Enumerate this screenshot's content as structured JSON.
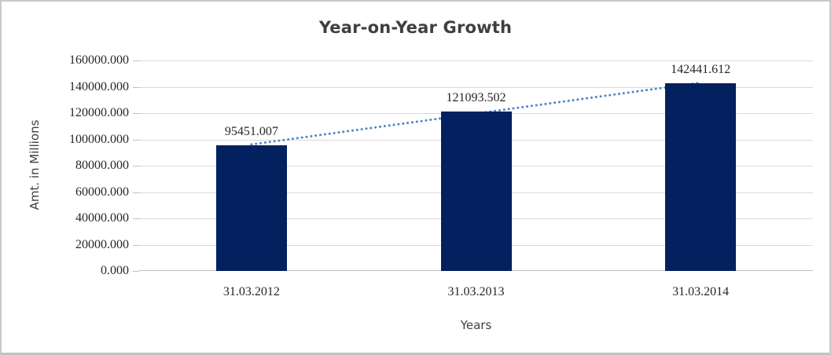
{
  "chart_data": {
    "type": "bar",
    "title": "Year-on-Year Growth",
    "xlabel": "Years",
    "ylabel": "Amt. in Millions",
    "categories": [
      "31.03.2012",
      "31.03.2013",
      "31.03.2014"
    ],
    "values": [
      95451.007,
      121093.502,
      142441.612
    ],
    "data_labels": [
      "95451.007",
      "121093.502",
      "142441.612"
    ],
    "ylim": [
      0,
      160000
    ],
    "ytick_step": 20000,
    "ytick_labels": [
      "0.000",
      "20000.000",
      "40000.000",
      "60000.000",
      "80000.000",
      "100000.000",
      "120000.000",
      "140000.000",
      "160000.000"
    ],
    "grid": true,
    "legend": "none",
    "trendline": {
      "type": "linear",
      "style": "dotted"
    },
    "colors": {
      "bar": "#02215e",
      "trendline": "#4a86c8",
      "gridline": "#d9d9d9",
      "axis_line": "#bfbfbf",
      "title_text": "#3f3f3f",
      "tick_text": "#262626"
    }
  }
}
